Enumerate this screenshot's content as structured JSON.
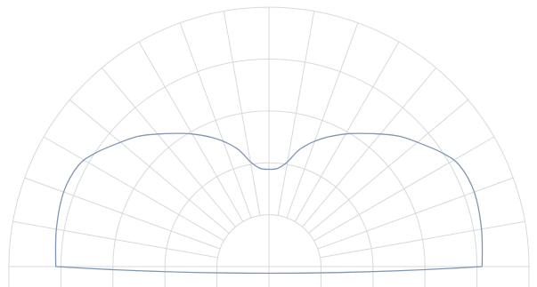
{
  "chart_data": {
    "type": "polar",
    "view": "lower-half-polar",
    "grid": true,
    "angular_range_deg": [
      0,
      180
    ],
    "radial_max": 1.0,
    "radial_rings": [
      0.2,
      0.4,
      0.6,
      0.8,
      1.0
    ],
    "angular_step_deg": 10,
    "colors": {
      "grid": "#d6d9dd",
      "curve": "#7f96b3"
    },
    "series": [
      {
        "points": [
          {
            "angle": 0,
            "r": 0.82
          },
          {
            "angle": 10,
            "r": 0.83
          },
          {
            "angle": 20,
            "r": 0.84
          },
          {
            "angle": 28,
            "r": 0.83
          },
          {
            "angle": 33,
            "r": 0.8
          },
          {
            "angle": 38,
            "r": 0.76
          },
          {
            "angle": 45,
            "r": 0.71
          },
          {
            "angle": 52,
            "r": 0.65
          },
          {
            "angle": 60,
            "r": 0.59
          },
          {
            "angle": 68,
            "r": 0.53
          },
          {
            "angle": 75,
            "r": 0.47
          },
          {
            "angle": 80,
            "r": 0.41
          },
          {
            "angle": 85,
            "r": 0.38
          },
          {
            "angle": 90,
            "r": 0.375
          },
          {
            "angle": 95,
            "r": 0.38
          },
          {
            "angle": 100,
            "r": 0.41
          },
          {
            "angle": 105,
            "r": 0.47
          },
          {
            "angle": 112,
            "r": 0.53
          },
          {
            "angle": 120,
            "r": 0.59
          },
          {
            "angle": 128,
            "r": 0.65
          },
          {
            "angle": 135,
            "r": 0.71
          },
          {
            "angle": 142,
            "r": 0.76
          },
          {
            "angle": 147,
            "r": 0.8
          },
          {
            "angle": 152,
            "r": 0.83
          },
          {
            "angle": 160,
            "r": 0.84
          },
          {
            "angle": 170,
            "r": 0.83
          },
          {
            "angle": 180,
            "r": 0.82
          }
        ]
      }
    ]
  }
}
